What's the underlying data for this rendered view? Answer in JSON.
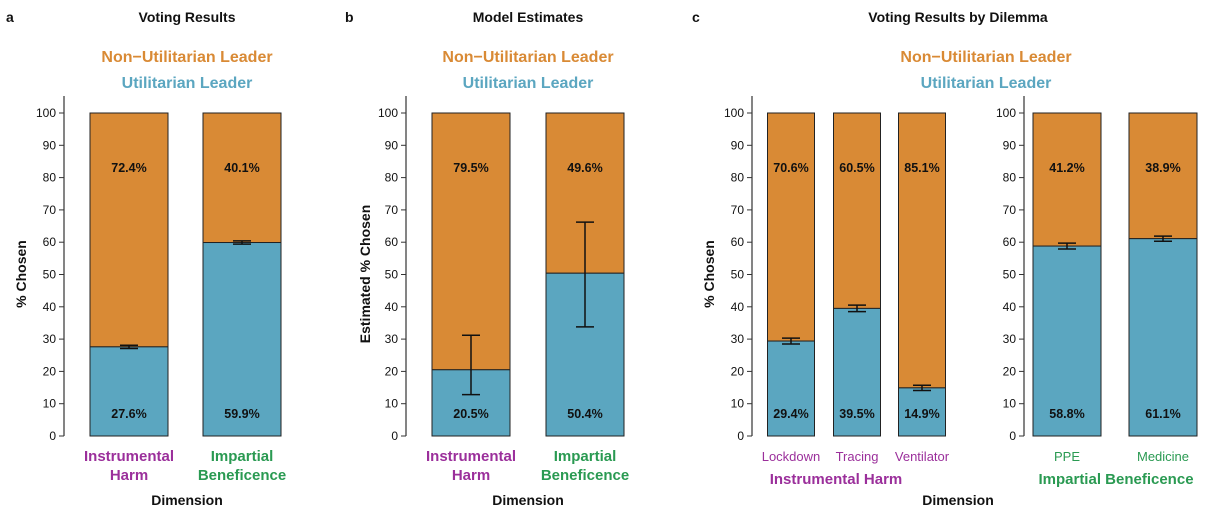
{
  "colors": {
    "utilitarian": "#5ba6c0",
    "non_utilitarian": "#d98a35",
    "instrumental": "#9b2f9b",
    "impartial": "#2a9a52",
    "axis": "#333333",
    "text": "#111111"
  },
  "legend": {
    "non_utilitarian": "Non−Utilitarian Leader",
    "utilitarian": "Utilitarian Leader"
  },
  "chart_data": [
    {
      "panel": "a",
      "type": "bar",
      "stacked": true,
      "title": "Voting Results",
      "ylabel": "% Chosen",
      "xlabel": "Dimension",
      "ylim": [
        0,
        100
      ],
      "yticks": [
        0,
        10,
        20,
        30,
        40,
        50,
        60,
        70,
        80,
        90,
        100
      ],
      "bars": [
        {
          "category": "Instrumental Harm",
          "category_lines": [
            "Instrumental",
            "Harm"
          ],
          "utilitarian": 27.6,
          "non_utilitarian": 72.4,
          "utilitarian_label": "27.6%",
          "non_utilitarian_label": "72.4%",
          "err_low": 27.1,
          "err_high": 28.1,
          "color_key": "instrumental"
        },
        {
          "category": "Impartial Beneficence",
          "category_lines": [
            "Impartial",
            "Beneficence"
          ],
          "utilitarian": 59.9,
          "non_utilitarian": 40.1,
          "utilitarian_label": "59.9%",
          "non_utilitarian_label": "40.1%",
          "err_low": 59.4,
          "err_high": 60.4,
          "color_key": "impartial"
        }
      ]
    },
    {
      "panel": "b",
      "type": "bar",
      "stacked": true,
      "title": "Model Estimates",
      "ylabel": "Estimated % Chosen",
      "xlabel": "Dimension",
      "ylim": [
        0,
        100
      ],
      "yticks": [
        0,
        10,
        20,
        30,
        40,
        50,
        60,
        70,
        80,
        90,
        100
      ],
      "bars": [
        {
          "category": "Instrumental Harm",
          "category_lines": [
            "Instrumental",
            "Harm"
          ],
          "utilitarian": 20.5,
          "non_utilitarian": 79.5,
          "utilitarian_label": "20.5%",
          "non_utilitarian_label": "79.5%",
          "err_low": 12.8,
          "err_high": 31.2,
          "color_key": "instrumental"
        },
        {
          "category": "Impartial Beneficence",
          "category_lines": [
            "Impartial",
            "Beneficence"
          ],
          "utilitarian": 50.4,
          "non_utilitarian": 49.6,
          "utilitarian_label": "50.4%",
          "non_utilitarian_label": "49.6%",
          "err_low": 33.8,
          "err_high": 66.2,
          "color_key": "impartial"
        }
      ]
    },
    {
      "panel": "c",
      "type": "bar",
      "stacked": true,
      "title": "Voting Results by Dilemma",
      "ylabel": "% Chosen",
      "xlabel": "Dimension",
      "ylim": [
        0,
        100
      ],
      "yticks": [
        0,
        10,
        20,
        30,
        40,
        50,
        60,
        70,
        80,
        90,
        100
      ],
      "facets": [
        {
          "name": "Instrumental Harm",
          "color_key": "instrumental",
          "bars": [
            {
              "category": "Lockdown",
              "utilitarian": 29.4,
              "non_utilitarian": 70.6,
              "utilitarian_label": "29.4%",
              "non_utilitarian_label": "70.6%",
              "err_low": 28.5,
              "err_high": 30.3
            },
            {
              "category": "Tracing",
              "utilitarian": 39.5,
              "non_utilitarian": 60.5,
              "utilitarian_label": "39.5%",
              "non_utilitarian_label": "60.5%",
              "err_low": 38.5,
              "err_high": 40.5
            },
            {
              "category": "Ventilator",
              "utilitarian": 14.9,
              "non_utilitarian": 85.1,
              "utilitarian_label": "14.9%",
              "non_utilitarian_label": "85.1%",
              "err_low": 14.1,
              "err_high": 15.7
            }
          ]
        },
        {
          "name": "Impartial Beneficence",
          "color_key": "impartial",
          "bars": [
            {
              "category": "PPE",
              "utilitarian": 58.8,
              "non_utilitarian": 41.2,
              "utilitarian_label": "58.8%",
              "non_utilitarian_label": "41.2%",
              "err_low": 57.9,
              "err_high": 59.7
            },
            {
              "category": "Medicine",
              "utilitarian": 61.1,
              "non_utilitarian": 38.9,
              "utilitarian_label": "61.1%",
              "non_utilitarian_label": "38.9%",
              "err_low": 60.3,
              "err_high": 61.9
            }
          ]
        }
      ]
    }
  ]
}
